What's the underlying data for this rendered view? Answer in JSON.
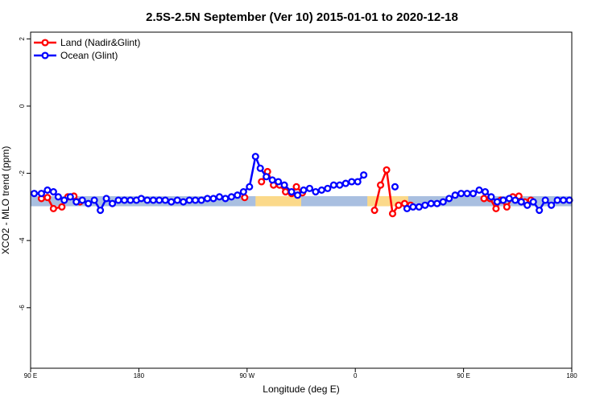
{
  "chart_data": {
    "type": "line",
    "title": "2.5S-2.5N September (Ver 10)   2015-01-01 to 2020-12-18",
    "xlabel": "Longitude (deg E)",
    "ylabel": "XCO2 - MLO trend (ppm)",
    "x_ticks": [
      {
        "value": 90,
        "label": "90 E"
      },
      {
        "value": 180,
        "label": "180"
      },
      {
        "value": 270,
        "label": "90 W"
      },
      {
        "value": 360,
        "label": "0"
      },
      {
        "value": 450,
        "label": "90 E"
      },
      {
        "value": 540,
        "label": "180"
      }
    ],
    "y_ticks": [
      2,
      0,
      -2,
      -4,
      -6
    ],
    "xlim": [
      90,
      540
    ],
    "ylim": [
      -7.8,
      2.2
    ],
    "grid": false,
    "legend_position": "top-left",
    "bands": [
      {
        "color": "#a9bfe0",
        "y_range": [
          -2.98,
          -2.68
        ],
        "x_range": [
          90,
          540
        ]
      },
      {
        "color": "#fbd98a",
        "y_range": [
          -2.98,
          -2.68
        ],
        "x_range": [
          277,
          315
        ]
      },
      {
        "color": "#fbd98a",
        "y_range": [
          -2.98,
          -2.68
        ],
        "x_range": [
          370,
          404
        ]
      }
    ],
    "series": [
      {
        "name": "Land (Nadir&Glint)",
        "color": "#ff0000",
        "segments": [
          [
            [
              99,
              -2.75
            ],
            [
              104,
              -2.72
            ],
            [
              109,
              -3.05
            ],
            [
              116,
              -3.0
            ],
            [
              121,
              -2.7
            ],
            [
              126,
              -2.68
            ],
            [
              131,
              -2.85
            ]
          ],
          [
            [
              268,
              -2.72
            ]
          ],
          [
            [
              282,
              -2.25
            ],
            [
              287,
              -1.95
            ],
            [
              292,
              -2.35
            ],
            [
              297,
              -2.35
            ],
            [
              302,
              -2.55
            ],
            [
              307,
              -2.6
            ],
            [
              311,
              -2.4
            ],
            [
              316,
              -2.58
            ]
          ],
          [
            [
              376,
              -3.1
            ],
            [
              381,
              -2.35
            ],
            [
              386,
              -1.9
            ],
            [
              391,
              -3.2
            ],
            [
              396,
              -2.95
            ],
            [
              401,
              -2.9
            ],
            [
              406,
              -2.95
            ]
          ],
          [
            [
              467,
              -2.75
            ],
            [
              472,
              -2.75
            ],
            [
              477,
              -3.05
            ],
            [
              481,
              -2.8
            ],
            [
              486,
              -3.0
            ],
            [
              491,
              -2.7
            ],
            [
              496,
              -2.68
            ],
            [
              501,
              -2.85
            ],
            [
              506,
              -2.8
            ]
          ]
        ]
      },
      {
        "name": "Ocean (Glint)",
        "color": "#0000ff",
        "segments": [
          [
            [
              93,
              -2.6
            ],
            [
              99,
              -2.6
            ],
            [
              104,
              -2.5
            ],
            [
              109,
              -2.55
            ],
            [
              113,
              -2.7
            ],
            [
              118,
              -2.8
            ],
            [
              123,
              -2.7
            ],
            [
              128,
              -2.85
            ],
            [
              133,
              -2.8
            ],
            [
              138,
              -2.9
            ],
            [
              143,
              -2.8
            ],
            [
              148,
              -3.1
            ],
            [
              153,
              -2.75
            ],
            [
              158,
              -2.9
            ],
            [
              163,
              -2.8
            ],
            [
              168,
              -2.8
            ],
            [
              173,
              -2.8
            ],
            [
              178,
              -2.8
            ],
            [
              182,
              -2.75
            ],
            [
              187,
              -2.8
            ],
            [
              192,
              -2.8
            ],
            [
              197,
              -2.8
            ],
            [
              202,
              -2.8
            ],
            [
              207,
              -2.85
            ],
            [
              212,
              -2.8
            ],
            [
              217,
              -2.85
            ],
            [
              222,
              -2.8
            ],
            [
              227,
              -2.8
            ],
            [
              232,
              -2.8
            ],
            [
              237,
              -2.75
            ],
            [
              242,
              -2.75
            ],
            [
              247,
              -2.7
            ],
            [
              252,
              -2.75
            ],
            [
              257,
              -2.7
            ],
            [
              262,
              -2.65
            ],
            [
              267,
              -2.55
            ],
            [
              272,
              -2.4
            ],
            [
              277,
              -1.5
            ],
            [
              281,
              -1.85
            ],
            [
              286,
              -2.1
            ],
            [
              291,
              -2.2
            ],
            [
              296,
              -2.25
            ],
            [
              301,
              -2.35
            ],
            [
              307,
              -2.55
            ],
            [
              312,
              -2.65
            ],
            [
              317,
              -2.5
            ],
            [
              322,
              -2.45
            ],
            [
              327,
              -2.55
            ],
            [
              332,
              -2.5
            ],
            [
              337,
              -2.45
            ],
            [
              342,
              -2.35
            ],
            [
              347,
              -2.35
            ],
            [
              352,
              -2.3
            ],
            [
              357,
              -2.25
            ],
            [
              362,
              -2.25
            ],
            [
              367,
              -2.05
            ]
          ],
          [
            [
              393,
              -2.4
            ]
          ],
          [
            [
              403,
              -3.05
            ],
            [
              408,
              -3.0
            ],
            [
              413,
              -3.0
            ],
            [
              418,
              -2.95
            ],
            [
              423,
              -2.9
            ],
            [
              428,
              -2.9
            ],
            [
              433,
              -2.85
            ],
            [
              438,
              -2.75
            ],
            [
              443,
              -2.65
            ],
            [
              448,
              -2.6
            ],
            [
              453,
              -2.6
            ],
            [
              458,
              -2.6
            ],
            [
              463,
              -2.5
            ],
            [
              468,
              -2.55
            ],
            [
              473,
              -2.7
            ],
            [
              478,
              -2.85
            ],
            [
              483,
              -2.8
            ],
            [
              488,
              -2.75
            ],
            [
              493,
              -2.8
            ],
            [
              498,
              -2.85
            ],
            [
              503,
              -2.95
            ],
            [
              508,
              -2.85
            ],
            [
              513,
              -3.1
            ],
            [
              518,
              -2.8
            ],
            [
              523,
              -2.95
            ],
            [
              528,
              -2.8
            ],
            [
              533,
              -2.8
            ],
            [
              538,
              -2.8
            ]
          ]
        ]
      }
    ]
  }
}
